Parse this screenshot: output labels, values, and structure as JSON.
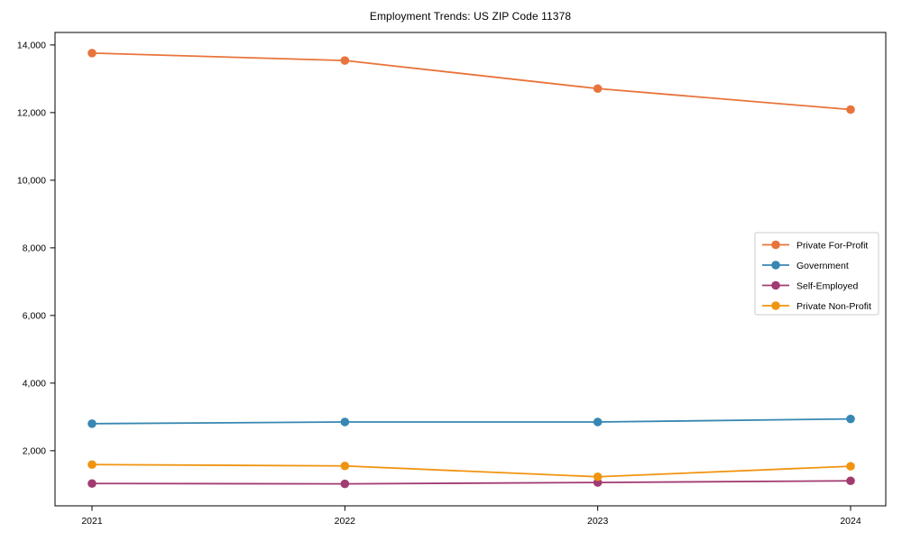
{
  "chart_data": {
    "type": "line",
    "title": "Employment Trends: US ZIP Code 11378",
    "x": [
      "2021",
      "2022",
      "2023",
      "2024"
    ],
    "series": [
      {
        "name": "Private For-Profit",
        "color": "#E8743B",
        "values": [
          13760,
          13540,
          12710,
          12090
        ]
      },
      {
        "name": "Government",
        "color": "#3787B2",
        "values": [
          2800,
          2850,
          2850,
          2940
        ]
      },
      {
        "name": "Self-Employed",
        "color": "#A23B72",
        "values": [
          1030,
          1020,
          1060,
          1110
        ]
      },
      {
        "name": "Private Non-Profit",
        "color": "#F09410",
        "values": [
          1590,
          1550,
          1230,
          1540
        ]
      }
    ],
    "xlabel": "",
    "ylabel": "",
    "yticks": [
      2000,
      4000,
      6000,
      8000,
      10000,
      12000,
      14000
    ],
    "ytick_labels": [
      "2,000",
      "4,000",
      "6,000",
      "8,000",
      "10,000",
      "12,000",
      "14,000"
    ],
    "ylim": [
      370,
      14370
    ],
    "grid": false,
    "legend_position": "center-right",
    "marker": "circle",
    "axis_color": "#000000",
    "legend_border_color": "#cccccc"
  }
}
